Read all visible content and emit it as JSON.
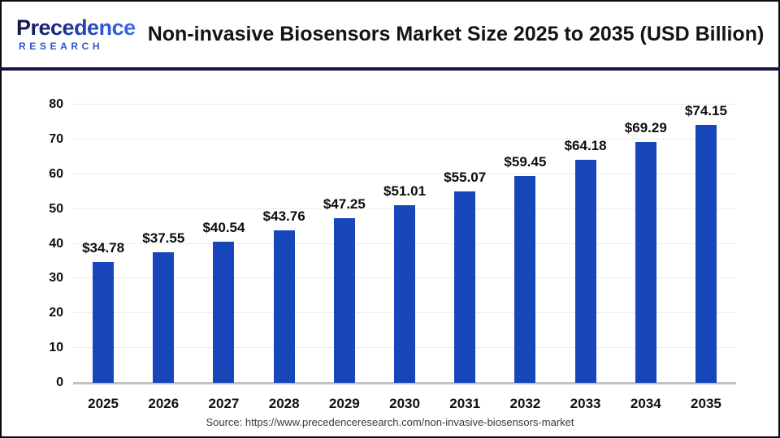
{
  "header": {
    "logo": {
      "brand": "Precedence",
      "sub": "RESEARCH"
    },
    "title": "Non-invasive Biosensors Market Size 2025 to 2035 (USD Billion)"
  },
  "footer": {
    "source": "Source: https://www.precedenceresearch.com/non-invasive-biosensors-market"
  },
  "colors": {
    "bar": "#1746BB",
    "separator_navy": "#14143c",
    "logo_navy": "#15154a",
    "logo_blue": "#3a76e8",
    "research_blue": "#2b57cf",
    "gridline": "#ececec",
    "baseline": "#c2c2c2",
    "outer_border": "#0b0b14"
  },
  "chart_data": {
    "type": "bar",
    "title": "Non-invasive Biosensors Market Size 2025 to 2035 (USD Billion)",
    "x": [
      "2025",
      "2026",
      "2027",
      "2028",
      "2029",
      "2030",
      "2031",
      "2032",
      "2033",
      "2034",
      "2035"
    ],
    "values": [
      34.78,
      37.55,
      40.54,
      43.76,
      47.25,
      51.01,
      55.07,
      59.45,
      64.18,
      69.29,
      74.15
    ],
    "labels": [
      "$34.78",
      "$37.55",
      "$40.54",
      "$43.76",
      "$47.25",
      "$51.01",
      "$55.07",
      "$59.45",
      "$64.18",
      "$69.29",
      "$74.15"
    ],
    "xlabel": "",
    "ylabel": "",
    "unit": "USD Billion",
    "ylim": [
      0,
      80
    ],
    "yticks": [
      0,
      10,
      20,
      30,
      40,
      50,
      60,
      70,
      80
    ],
    "grid": true,
    "legend": false,
    "bar_color": "#1746BB"
  }
}
